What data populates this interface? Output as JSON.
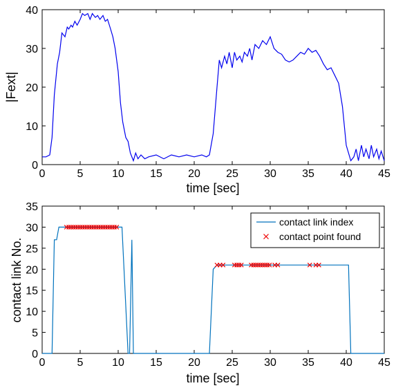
{
  "chart_data": [
    {
      "type": "line",
      "xlabel": "time [sec]",
      "ylabel": "|Fext|",
      "xlim": [
        0,
        45
      ],
      "ylim": [
        0,
        40
      ],
      "xticks": [
        "0",
        "5",
        "10",
        "15",
        "20",
        "25",
        "30",
        "35",
        "40",
        "45"
      ],
      "yticks": [
        "0",
        "10",
        "20",
        "30",
        "40"
      ],
      "grid": false,
      "series": [
        {
          "color": "#0000ee",
          "x": [
            0,
            0.5,
            1.0,
            1.3,
            1.6,
            2.0,
            2.3,
            2.6,
            3.0,
            3.3,
            3.5,
            3.8,
            4.0,
            4.3,
            4.6,
            5.0,
            5.3,
            5.6,
            6.0,
            6.3,
            6.6,
            7.0,
            7.3,
            7.6,
            8.0,
            8.3,
            8.6,
            9.0,
            9.3,
            9.6,
            10.0,
            10.3,
            10.6,
            11.0,
            11.3,
            11.6,
            12.0,
            12.3,
            12.6,
            13.0,
            13.5,
            14.0,
            15.0,
            16.0,
            17.0,
            18.0,
            19.0,
            20.0,
            21.0,
            21.6,
            22.0,
            22.5,
            23.0,
            23.3,
            23.6,
            24.0,
            24.3,
            24.6,
            25.0,
            25.3,
            25.6,
            26.0,
            26.3,
            26.6,
            27.0,
            27.3,
            27.6,
            28.0,
            28.5,
            29.0,
            29.5,
            30.0,
            30.5,
            31.0,
            31.5,
            32.0,
            32.5,
            33.0,
            33.5,
            34.0,
            34.5,
            35.0,
            35.5,
            36.0,
            36.5,
            37.0,
            37.5,
            38.0,
            38.5,
            39.0,
            39.5,
            40.0,
            40.3,
            40.6,
            41.0,
            41.3,
            41.6,
            42.0,
            42.3,
            42.6,
            43.0,
            43.3,
            43.6,
            44.0,
            44.3,
            44.6,
            45.0
          ],
          "values": [
            2,
            2,
            2.5,
            7,
            18,
            26,
            29,
            34,
            33,
            35.5,
            35,
            36,
            35.5,
            37,
            36,
            37.5,
            39,
            38.5,
            39,
            37.5,
            39,
            38,
            38.5,
            37.5,
            38.5,
            37,
            37.5,
            35,
            33,
            30,
            24,
            16,
            11,
            7,
            6,
            3,
            1,
            3,
            1.5,
            2.5,
            1.5,
            2,
            2.5,
            1.5,
            2.5,
            2,
            2.5,
            2,
            2.5,
            2,
            2.5,
            8,
            20,
            27,
            25,
            28,
            26,
            29,
            25,
            29,
            27,
            28,
            26.5,
            29,
            28,
            30,
            27,
            31,
            30,
            32,
            31,
            33,
            30,
            29,
            28.5,
            27,
            26.5,
            27,
            28,
            29,
            28.5,
            30,
            29,
            29.5,
            28,
            26,
            24.5,
            25,
            23,
            21,
            15,
            5,
            3,
            1,
            2,
            4,
            1,
            5,
            2,
            4,
            1.5,
            5,
            2,
            4,
            1.5,
            3.5,
            1
          ]
        }
      ]
    },
    {
      "type": "line",
      "xlabel": "time [sec]",
      "ylabel": "contact link No.",
      "xlim": [
        0,
        45
      ],
      "ylim": [
        0,
        35
      ],
      "xticks": [
        "0",
        "5",
        "10",
        "15",
        "20",
        "25",
        "30",
        "35",
        "40",
        "45"
      ],
      "yticks": [
        "0",
        "5",
        "10",
        "15",
        "20",
        "25",
        "30",
        "35"
      ],
      "grid": false,
      "legend_position": "top-right",
      "series": [
        {
          "name": "contact link index",
          "color": "#0072bd",
          "x": [
            0,
            1.3,
            1.6,
            1.9,
            2.2,
            3.0,
            10.0,
            10.5,
            11.3,
            11.5,
            11.8,
            12.0,
            12.1,
            22.0,
            22.5,
            23.0,
            24.0,
            40.3,
            40.6,
            45.0
          ],
          "values": [
            0,
            0,
            27,
            27,
            30,
            30,
            30,
            30,
            0,
            0,
            27,
            0,
            0,
            0,
            20,
            21,
            21,
            21,
            0,
            0
          ]
        },
        {
          "name": "contact point found",
          "color": "#ee0000",
          "marker": "x",
          "x": [
            3.2,
            3.5,
            3.8,
            4.1,
            4.4,
            4.7,
            5.0,
            5.3,
            5.6,
            5.9,
            6.2,
            6.5,
            6.8,
            7.1,
            7.4,
            7.7,
            8.0,
            8.3,
            8.6,
            8.9,
            9.2,
            9.5,
            9.8,
            23.0,
            23.4,
            23.8,
            25.3,
            25.6,
            25.9,
            26.2,
            27.5,
            27.8,
            28.1,
            28.4,
            28.7,
            29.0,
            29.3,
            29.6,
            29.9,
            30.6,
            31.0,
            35.2,
            36.0,
            36.4
          ],
          "values": [
            30,
            30,
            30,
            30,
            30,
            30,
            30,
            30,
            30,
            30,
            30,
            30,
            30,
            30,
            30,
            30,
            30,
            30,
            30,
            30,
            30,
            30,
            30,
            21,
            21,
            21,
            21,
            21,
            21,
            21,
            21,
            21,
            21,
            21,
            21,
            21,
            21,
            21,
            21,
            21,
            21,
            21,
            21,
            21
          ]
        }
      ]
    }
  ]
}
